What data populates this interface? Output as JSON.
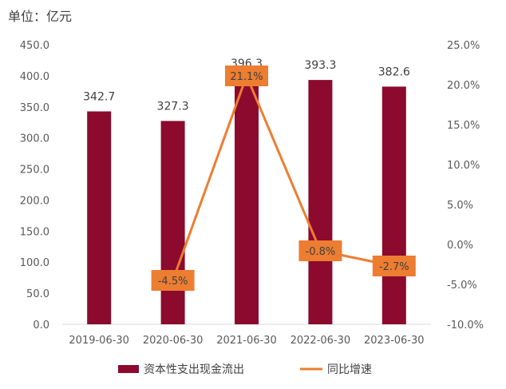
{
  "chart_data": {
    "type": "bar",
    "unit_label": "单位：亿元",
    "categories": [
      "2019-06-30",
      "2020-06-30",
      "2021-06-30",
      "2022-06-30",
      "2023-06-30"
    ],
    "series": [
      {
        "name": "资本性支出现金流出",
        "type": "bar",
        "axis": "left",
        "color": "#8b0a2e",
        "values": [
          342.7,
          327.3,
          396.3,
          393.3,
          382.6
        ],
        "labels": [
          "342.7",
          "327.3",
          "396.3",
          "393.3",
          "382.6"
        ]
      },
      {
        "name": "同比增速",
        "type": "line",
        "axis": "right",
        "color": "#ed7d31",
        "values": [
          null,
          -4.5,
          21.1,
          -0.8,
          -2.7
        ],
        "labels": [
          "",
          "-4.5%",
          "21.1%",
          "-0.8%",
          "-2.7%"
        ]
      }
    ],
    "y_left": {
      "min": 0,
      "max": 450,
      "ticks": [
        0,
        50,
        100,
        150,
        200,
        250,
        300,
        350,
        400,
        450
      ],
      "tick_labels": [
        "0.0",
        "50.0",
        "100.0",
        "150.0",
        "200.0",
        "250.0",
        "300.0",
        "350.0",
        "400.0",
        "450.0"
      ]
    },
    "y_right": {
      "min": -10,
      "max": 25,
      "ticks": [
        -10,
        -5,
        0,
        5,
        10,
        15,
        20,
        25
      ],
      "tick_labels": [
        "-10.0%",
        "-5.0%",
        "0.0%",
        "5.0%",
        "10.0%",
        "15.0%",
        "20.0%",
        "25.0%"
      ]
    },
    "grid": false,
    "legend_position": "bottom"
  }
}
